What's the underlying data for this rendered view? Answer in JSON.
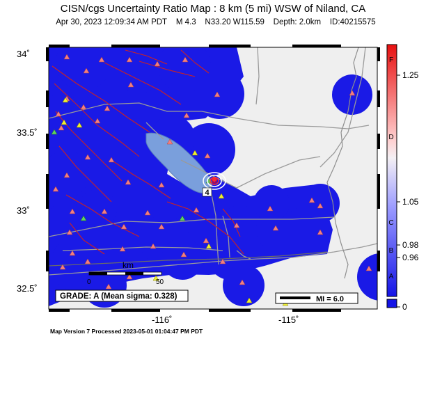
{
  "title": "CISN/cgs Uncertainty Ratio Map : 8 km (5 mi) WSW of Niland, CA",
  "event": {
    "datetime": "Apr 30, 2023 12:09:34 AM PDT",
    "magnitude": "M 4.3",
    "location": "N33.20 W115.59",
    "depth": "Depth: 2.0km",
    "id": "ID:40215575"
  },
  "axes": {
    "y_ticks": [
      "34˚",
      "33.5˚",
      "33˚",
      "32.5˚"
    ],
    "x_ticks": [
      "-116˚",
      "-115˚"
    ]
  },
  "grade_box": "GRADE: A (Mean sigma: 0.328)",
  "scale_bar": {
    "unit": "km",
    "zero": "0",
    "max": "50"
  },
  "mi_legend": "MI = 6.0",
  "epicenter_label": "4",
  "colorbar": {
    "labels": [
      "1.25",
      "1.05",
      "0.98",
      "0.96",
      "0"
    ],
    "grades": [
      "F",
      "D",
      "C",
      "B",
      "A"
    ]
  },
  "footer": "Map Version 7 Processed 2023-05-01 01:04:47 PM PDT",
  "colors": {
    "land": "#efefef",
    "low_ratio_blue": "#1a1ae6",
    "lake": "#7a9fdc",
    "faults": "#cc2222",
    "roads": "#9a9a9a",
    "stations": "#f08080"
  }
}
